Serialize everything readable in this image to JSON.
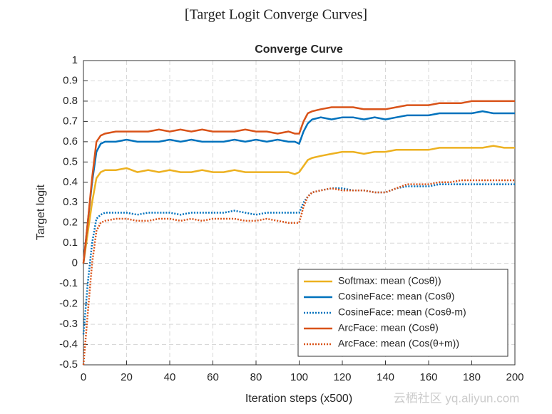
{
  "page_title": "[Target Logit Converge Curves]",
  "watermark": "云栖社区 yq.aliyun.com",
  "chart_data": {
    "type": "line",
    "title": "Converge Curve",
    "x_label": "Iteration steps (x500)",
    "y_label": "Target logit",
    "x": [
      0,
      2,
      4,
      6,
      8,
      10,
      15,
      20,
      25,
      30,
      35,
      40,
      45,
      50,
      55,
      60,
      65,
      70,
      75,
      80,
      85,
      90,
      95,
      98,
      100,
      102,
      104,
      106,
      110,
      115,
      120,
      125,
      130,
      135,
      140,
      145,
      150,
      155,
      160,
      165,
      170,
      175,
      180,
      185,
      190,
      195,
      200
    ],
    "series": [
      {
        "name": "Softmax: mean (Cosθ))",
        "color": "#EDB120",
        "style": "solid",
        "values": [
          0,
          0.15,
          0.3,
          0.42,
          0.45,
          0.46,
          0.46,
          0.47,
          0.45,
          0.46,
          0.45,
          0.46,
          0.45,
          0.45,
          0.46,
          0.45,
          0.45,
          0.46,
          0.45,
          0.45,
          0.45,
          0.45,
          0.45,
          0.44,
          0.45,
          0.48,
          0.51,
          0.52,
          0.53,
          0.54,
          0.55,
          0.55,
          0.54,
          0.55,
          0.55,
          0.56,
          0.56,
          0.56,
          0.56,
          0.57,
          0.57,
          0.57,
          0.57,
          0.57,
          0.58,
          0.57,
          0.57
        ]
      },
      {
        "name": "CosineFace: mean (Cosθ)",
        "color": "#0072BD",
        "style": "solid",
        "values": [
          0,
          0.2,
          0.4,
          0.55,
          0.59,
          0.6,
          0.6,
          0.61,
          0.6,
          0.6,
          0.6,
          0.61,
          0.6,
          0.61,
          0.6,
          0.6,
          0.6,
          0.61,
          0.6,
          0.61,
          0.6,
          0.61,
          0.6,
          0.6,
          0.59,
          0.65,
          0.69,
          0.71,
          0.72,
          0.71,
          0.72,
          0.72,
          0.71,
          0.72,
          0.71,
          0.72,
          0.73,
          0.73,
          0.73,
          0.74,
          0.74,
          0.74,
          0.74,
          0.75,
          0.74,
          0.74,
          0.74
        ]
      },
      {
        "name": "CosineFace: mean (Cosθ-m)",
        "color": "#0072BD",
        "style": "dotted",
        "values": [
          -0.35,
          -0.1,
          0.1,
          0.22,
          0.24,
          0.25,
          0.25,
          0.25,
          0.24,
          0.25,
          0.25,
          0.25,
          0.24,
          0.25,
          0.25,
          0.25,
          0.25,
          0.26,
          0.25,
          0.24,
          0.25,
          0.25,
          0.25,
          0.25,
          0.25,
          0.3,
          0.33,
          0.35,
          0.36,
          0.37,
          0.37,
          0.36,
          0.36,
          0.35,
          0.35,
          0.37,
          0.38,
          0.38,
          0.38,
          0.39,
          0.39,
          0.39,
          0.39,
          0.39,
          0.39,
          0.39,
          0.39
        ]
      },
      {
        "name": "ArcFace: mean (Cosθ)",
        "color": "#D95319",
        "style": "solid",
        "values": [
          0,
          0.2,
          0.42,
          0.6,
          0.63,
          0.64,
          0.65,
          0.65,
          0.65,
          0.65,
          0.66,
          0.65,
          0.66,
          0.65,
          0.66,
          0.65,
          0.65,
          0.65,
          0.66,
          0.65,
          0.65,
          0.64,
          0.65,
          0.64,
          0.64,
          0.7,
          0.74,
          0.75,
          0.76,
          0.77,
          0.77,
          0.77,
          0.76,
          0.76,
          0.76,
          0.77,
          0.78,
          0.78,
          0.78,
          0.79,
          0.79,
          0.79,
          0.8,
          0.8,
          0.8,
          0.8,
          0.8
        ]
      },
      {
        "name": "ArcFace: mean (Cos(θ+m))",
        "color": "#D95319",
        "style": "dotted",
        "values": [
          -0.5,
          -0.25,
          0,
          0.16,
          0.2,
          0.21,
          0.22,
          0.22,
          0.21,
          0.21,
          0.22,
          0.22,
          0.21,
          0.22,
          0.21,
          0.22,
          0.22,
          0.22,
          0.21,
          0.21,
          0.22,
          0.21,
          0.2,
          0.2,
          0.2,
          0.28,
          0.33,
          0.35,
          0.36,
          0.37,
          0.36,
          0.36,
          0.36,
          0.35,
          0.35,
          0.37,
          0.39,
          0.39,
          0.39,
          0.4,
          0.4,
          0.41,
          0.41,
          0.41,
          0.41,
          0.41,
          0.41
        ]
      }
    ],
    "xlim": [
      0,
      200
    ],
    "xticks": [
      0,
      20,
      40,
      60,
      80,
      100,
      120,
      140,
      160,
      180,
      200
    ],
    "ylim": [
      -0.5,
      1
    ],
    "yticks": [
      -0.5,
      -0.4,
      -0.3,
      -0.2,
      -0.1,
      0,
      0.1,
      0.2,
      0.3,
      0.4,
      0.5,
      0.6,
      0.7,
      0.8,
      0.9,
      1
    ],
    "grid": true,
    "legend": "lower right"
  }
}
